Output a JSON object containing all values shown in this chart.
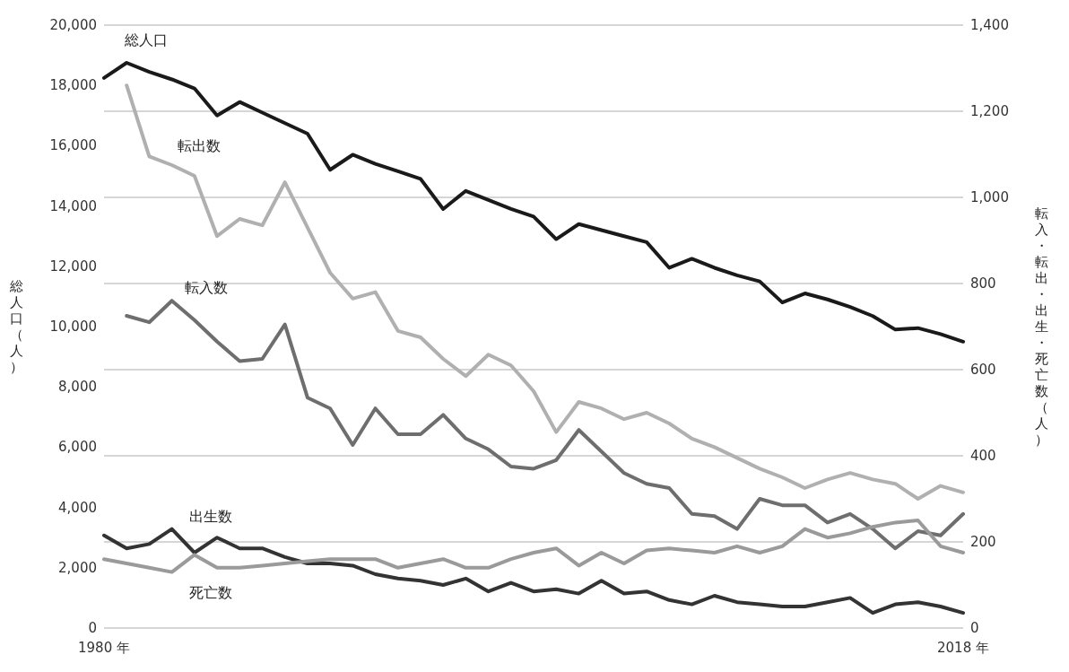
{
  "chart_data": {
    "type": "line",
    "ylabel": "総人口（人）",
    "y2label": "転入・転出・出生・死亡数（人）",
    "xlim": [
      1980,
      2018
    ],
    "xticks": [
      {
        "value": 1980,
        "label": "1980 年"
      },
      {
        "value": 2018,
        "label": "2018 年"
      }
    ],
    "ylim": [
      0,
      20000
    ],
    "yticks": [
      0,
      {
        "value": 2000,
        "label": "2,000"
      },
      {
        "value": 4000,
        "label": "4,000"
      },
      {
        "value": 6000,
        "label": "6,000"
      },
      {
        "value": 8000,
        "label": "8,000"
      },
      {
        "value": 10000,
        "label": "10,000"
      },
      {
        "value": 12000,
        "label": "12,000"
      },
      {
        "value": 14000,
        "label": "14,000"
      },
      {
        "value": 16000,
        "label": "16,000"
      },
      {
        "value": 18000,
        "label": "18,000"
      },
      {
        "value": 20000,
        "label": "20,000"
      }
    ],
    "y2lim": [
      0,
      1400
    ],
    "y2ticks": [
      0,
      200,
      400,
      600,
      800,
      {
        "value": 1000,
        "label": "1,000"
      },
      {
        "value": 1200,
        "label": "1,200"
      },
      {
        "value": 1400,
        "label": "1,400"
      }
    ],
    "grid": "y2",
    "legend": false,
    "marker": "none",
    "line_style": "solid",
    "x": [
      1980,
      1981,
      1982,
      1983,
      1984,
      1985,
      1986,
      1987,
      1988,
      1989,
      1990,
      1991,
      1992,
      1993,
      1994,
      1995,
      1996,
      1997,
      1998,
      1999,
      2000,
      2001,
      2002,
      2003,
      2004,
      2005,
      2006,
      2007,
      2008,
      2009,
      2010,
      2011,
      2012,
      2013,
      2014,
      2015,
      2016,
      2017,
      2018
    ],
    "series": [
      {
        "name": "総人口",
        "color": "#1a1a1a",
        "values": [
          18250,
          18750,
          18450,
          18200,
          17900,
          17000,
          17450,
          17100,
          16750,
          16400,
          15200,
          15700,
          15400,
          15150,
          14900,
          13900,
          14500,
          14200,
          13900,
          13650,
          12900,
          13400,
          13200,
          13000,
          12800,
          11950,
          12250,
          11950,
          11700,
          11500,
          10800,
          11100,
          10900,
          10650,
          10350,
          9900,
          9950,
          9750,
          9500
        ]
      },
      {
        "name": "転出数",
        "color": "#b0b0b0",
        "axis": "y2",
        "values": [
          null,
          1260,
          1095,
          1075,
          1050,
          910,
          950,
          935,
          1035,
          930,
          825,
          765,
          780,
          690,
          675,
          625,
          585,
          635,
          610,
          550,
          455,
          525,
          510,
          485,
          500,
          475,
          440,
          420,
          395,
          370,
          350,
          325,
          345,
          360,
          345,
          335,
          300,
          330,
          315
        ]
      },
      {
        "name": "転入数",
        "color": "#6e6e6e",
        "axis": "y2",
        "values": [
          null,
          725,
          710,
          760,
          715,
          665,
          620,
          625,
          705,
          535,
          510,
          425,
          510,
          450,
          450,
          495,
          440,
          415,
          375,
          370,
          390,
          460,
          410,
          360,
          335,
          325,
          265,
          260,
          230,
          300,
          285,
          285,
          245,
          265,
          230,
          185,
          225,
          215,
          265
        ]
      },
      {
        "name": "出生数",
        "color": "#333333",
        "axis": "y2",
        "values": [
          215,
          185,
          195,
          230,
          175,
          210,
          185,
          185,
          165,
          150,
          150,
          145,
          125,
          115,
          110,
          100,
          115,
          85,
          105,
          85,
          90,
          80,
          110,
          80,
          85,
          65,
          55,
          75,
          60,
          55,
          50,
          50,
          60,
          70,
          35,
          55,
          60,
          50,
          35
        ]
      },
      {
        "name": "死亡数",
        "color": "#9a9a9a",
        "axis": "y2",
        "values": [
          160,
          150,
          140,
          130,
          170,
          140,
          140,
          145,
          150,
          155,
          160,
          160,
          160,
          140,
          150,
          160,
          140,
          140,
          160,
          175,
          185,
          145,
          175,
          150,
          180,
          185,
          180,
          175,
          190,
          175,
          190,
          230,
          210,
          220,
          235,
          245,
          250,
          190,
          175
        ]
      }
    ]
  }
}
